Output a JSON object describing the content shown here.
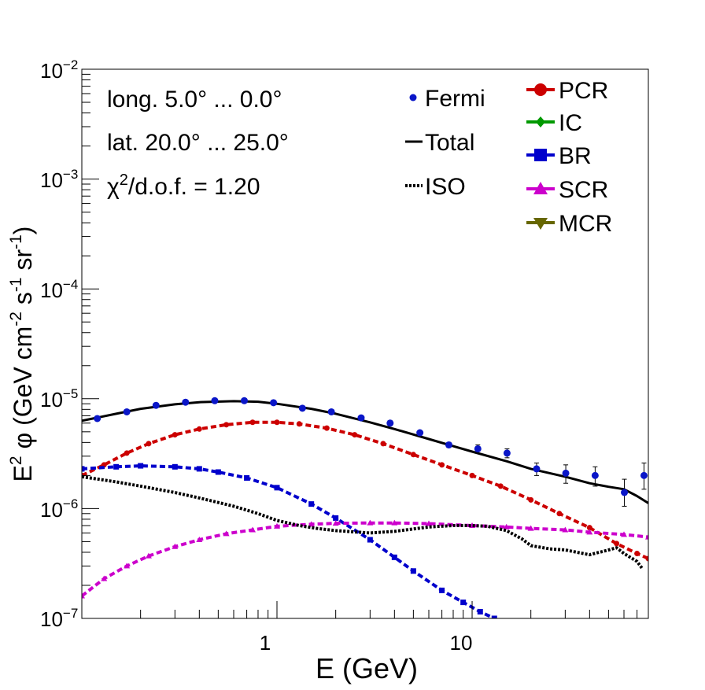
{
  "chart_data": {
    "type": "line",
    "xscale": "log",
    "yscale": "log",
    "xlim": [
      0.1,
      80
    ],
    "ylim": [
      1e-07,
      0.01
    ],
    "xlabel": "E (GeV)",
    "ylabel": {
      "main": "E",
      "sup1": "2",
      "phi": " φ (GeV cm",
      "sup2": "-2",
      "s": " s",
      "sup3": "-1",
      "sr": " sr",
      "sup4": "-1",
      "close": ")"
    },
    "x_tick_labels": [
      {
        "value": 1,
        "label": "1"
      },
      {
        "value": 10,
        "label": "10"
      }
    ],
    "y_tick_labels": [
      {
        "value": 1e-07,
        "base": "10",
        "exp": "−7"
      },
      {
        "value": 1e-06,
        "base": "10",
        "exp": "−6"
      },
      {
        "value": 1e-05,
        "base": "10",
        "exp": "−5"
      },
      {
        "value": 0.0001,
        "base": "10",
        "exp": "−4"
      },
      {
        "value": 0.001,
        "base": "10",
        "exp": "−3"
      },
      {
        "value": 0.01,
        "base": "10",
        "exp": "−2"
      }
    ],
    "annotations": {
      "longitude": "long. 5.0° ... 0.0°",
      "latitude": "lat. 20.0° ... 25.0°",
      "chi_symbol": "χ",
      "chi_sup": "2",
      "chi_rest": "/d.o.f. = 1.20"
    },
    "legend": {
      "left": [
        {
          "key": "fermi",
          "label": "Fermi",
          "style": "point",
          "color": "#0a16c8"
        },
        {
          "key": "total",
          "label": "Total",
          "style": "line",
          "color": "#000000"
        },
        {
          "key": "iso",
          "label": "ISO",
          "style": "dotted",
          "color": "#000000"
        }
      ],
      "right": [
        {
          "key": "pcr",
          "label": "PCR",
          "marker": "circle",
          "color": "#cc0000"
        },
        {
          "key": "ic",
          "label": "IC",
          "marker": "diamond",
          "color": "#009900"
        },
        {
          "key": "br",
          "label": "BR",
          "marker": "square",
          "color": "#0000cc"
        },
        {
          "key": "scr",
          "label": "SCR",
          "marker": "triangle-up",
          "color": "#cc00cc"
        },
        {
          "key": "mcr",
          "label": "MCR",
          "marker": "triangle-down",
          "color": "#666600"
        }
      ]
    },
    "fermi": {
      "x": [
        0.12,
        0.17,
        0.24,
        0.34,
        0.48,
        0.68,
        0.96,
        1.35,
        1.9,
        2.7,
        3.8,
        5.4,
        7.6,
        10.7,
        15.1,
        21.4,
        30.2,
        42.7,
        60.3,
        76
      ],
      "y": [
        6.6e-06,
        7.6e-06,
        8.7e-06,
        9.3e-06,
        9.6e-06,
        9.6e-06,
        9.2e-06,
        8.2e-06,
        7.6e-06,
        6.7e-06,
        6e-06,
        4.9e-06,
        3.8e-06,
        3.5e-06,
        3.2e-06,
        2.3e-06,
        2.1e-06,
        2e-06,
        1.4e-06,
        2e-06
      ],
      "err_lo": [
        6.3e-06,
        7.3e-06,
        8.4e-06,
        9e-06,
        9.3e-06,
        9.3e-06,
        8.9e-06,
        7.9e-06,
        7.3e-06,
        6.4e-06,
        5.7e-06,
        4.7e-06,
        3.6e-06,
        3.2e-06,
        2.9e-06,
        2e-06,
        1.7e-06,
        1.6e-06,
        1.05e-06,
        1.5e-06
      ],
      "err_hi": [
        6.9e-06,
        7.9e-06,
        9e-06,
        9.6e-06,
        9.9e-06,
        9.9e-06,
        9.5e-06,
        8.5e-06,
        7.9e-06,
        7e-06,
        6.3e-06,
        5.1e-06,
        4e-06,
        3.8e-06,
        3.5e-06,
        2.6e-06,
        2.5e-06,
        2.4e-06,
        1.85e-06,
        2.6e-06
      ]
    },
    "curves": [
      {
        "key": "total",
        "color": "#000000",
        "style": "solid",
        "marker": "none",
        "x": [
          0.1,
          0.15,
          0.2,
          0.3,
          0.4,
          0.6,
          0.8,
          1.0,
          1.5,
          2,
          3,
          4,
          6,
          8,
          10,
          15,
          20,
          30,
          40,
          50,
          60,
          70,
          80
        ],
        "y": [
          6.3e-06,
          7.3e-06,
          8.1e-06,
          8.9e-06,
          9.3e-06,
          9.5e-06,
          9.4e-06,
          9e-06,
          8.1e-06,
          7.3e-06,
          6.1e-06,
          5.3e-06,
          4.3e-06,
          3.7e-06,
          3.3e-06,
          2.7e-06,
          2.3e-06,
          1.95e-06,
          1.7e-06,
          1.58e-06,
          1.5e-06,
          1.3e-06,
          1.12e-06
        ]
      },
      {
        "key": "pcr",
        "color": "#cc0000",
        "style": "dashed",
        "marker": "circle",
        "x": [
          0.1,
          0.13,
          0.17,
          0.22,
          0.3,
          0.4,
          0.55,
          0.75,
          1.0,
          1.3,
          1.8,
          2.5,
          3.5,
          5,
          7,
          10,
          14,
          20,
          28,
          40,
          55,
          70,
          80
        ],
        "y": [
          2e-06,
          2.5e-06,
          3.2e-06,
          3.9e-06,
          4.7e-06,
          5.3e-06,
          5.8e-06,
          6.1e-06,
          6.1e-06,
          5.9e-06,
          5.4e-06,
          4.7e-06,
          3.9e-06,
          3.1e-06,
          2.5e-06,
          2e-06,
          1.6e-06,
          1.2e-06,
          9e-07,
          6.7e-07,
          4.8e-07,
          3.9e-07,
          3.5e-07
        ]
      },
      {
        "key": "br",
        "color": "#0000cc",
        "style": "dashed",
        "marker": "square",
        "x": [
          0.1,
          0.15,
          0.2,
          0.3,
          0.4,
          0.5,
          0.7,
          1.0,
          1.5,
          2,
          3,
          4,
          5,
          7,
          9,
          11,
          13
        ],
        "y": [
          2.3e-06,
          2.4e-06,
          2.45e-06,
          2.4e-06,
          2.3e-06,
          2.15e-06,
          1.9e-06,
          1.55e-06,
          1.1e-06,
          8.2e-07,
          5.2e-07,
          3.6e-07,
          2.7e-07,
          1.8e-07,
          1.4e-07,
          1.15e-07,
          1e-07
        ]
      },
      {
        "key": "scr",
        "color": "#cc00cc",
        "style": "dashed",
        "marker": "triangle-up",
        "x": [
          0.1,
          0.13,
          0.17,
          0.22,
          0.3,
          0.4,
          0.55,
          0.75,
          1.0,
          1.5,
          2,
          3,
          4,
          6,
          10,
          15,
          20,
          30,
          40,
          60,
          80
        ],
        "y": [
          1.6e-07,
          2.3e-07,
          3e-07,
          3.7e-07,
          4.5e-07,
          5.2e-07,
          5.9e-07,
          6.4e-07,
          6.9e-07,
          7.2e-07,
          7.35e-07,
          7.4e-07,
          7.4e-07,
          7.3e-07,
          7e-07,
          6.8e-07,
          6.6e-07,
          6.4e-07,
          6.1e-07,
          5.8e-07,
          5.5e-07
        ]
      },
      {
        "key": "iso",
        "color": "#000000",
        "style": "dotted",
        "marker": "none",
        "x": [
          0.1,
          0.15,
          0.2,
          0.3,
          0.4,
          0.6,
          0.8,
          1.0,
          1.3,
          1.6,
          2,
          3,
          4,
          6,
          8,
          10,
          12,
          15,
          18,
          20,
          25,
          30,
          40,
          50,
          55,
          60,
          70,
          75
        ],
        "y": [
          1.95e-06,
          1.75e-06,
          1.6e-06,
          1.4e-06,
          1.25e-06,
          1.05e-06,
          9e-07,
          7.8e-07,
          7e-07,
          6.6e-07,
          6.3e-07,
          6e-07,
          6.2e-07,
          6.8e-07,
          7e-07,
          7e-07,
          6.9e-07,
          6.3e-07,
          5.3e-07,
          4.6e-07,
          4.3e-07,
          4.2e-07,
          3.8e-07,
          4.2e-07,
          4.4e-07,
          3.9e-07,
          3.3e-07,
          2.8e-07
        ]
      }
    ]
  }
}
